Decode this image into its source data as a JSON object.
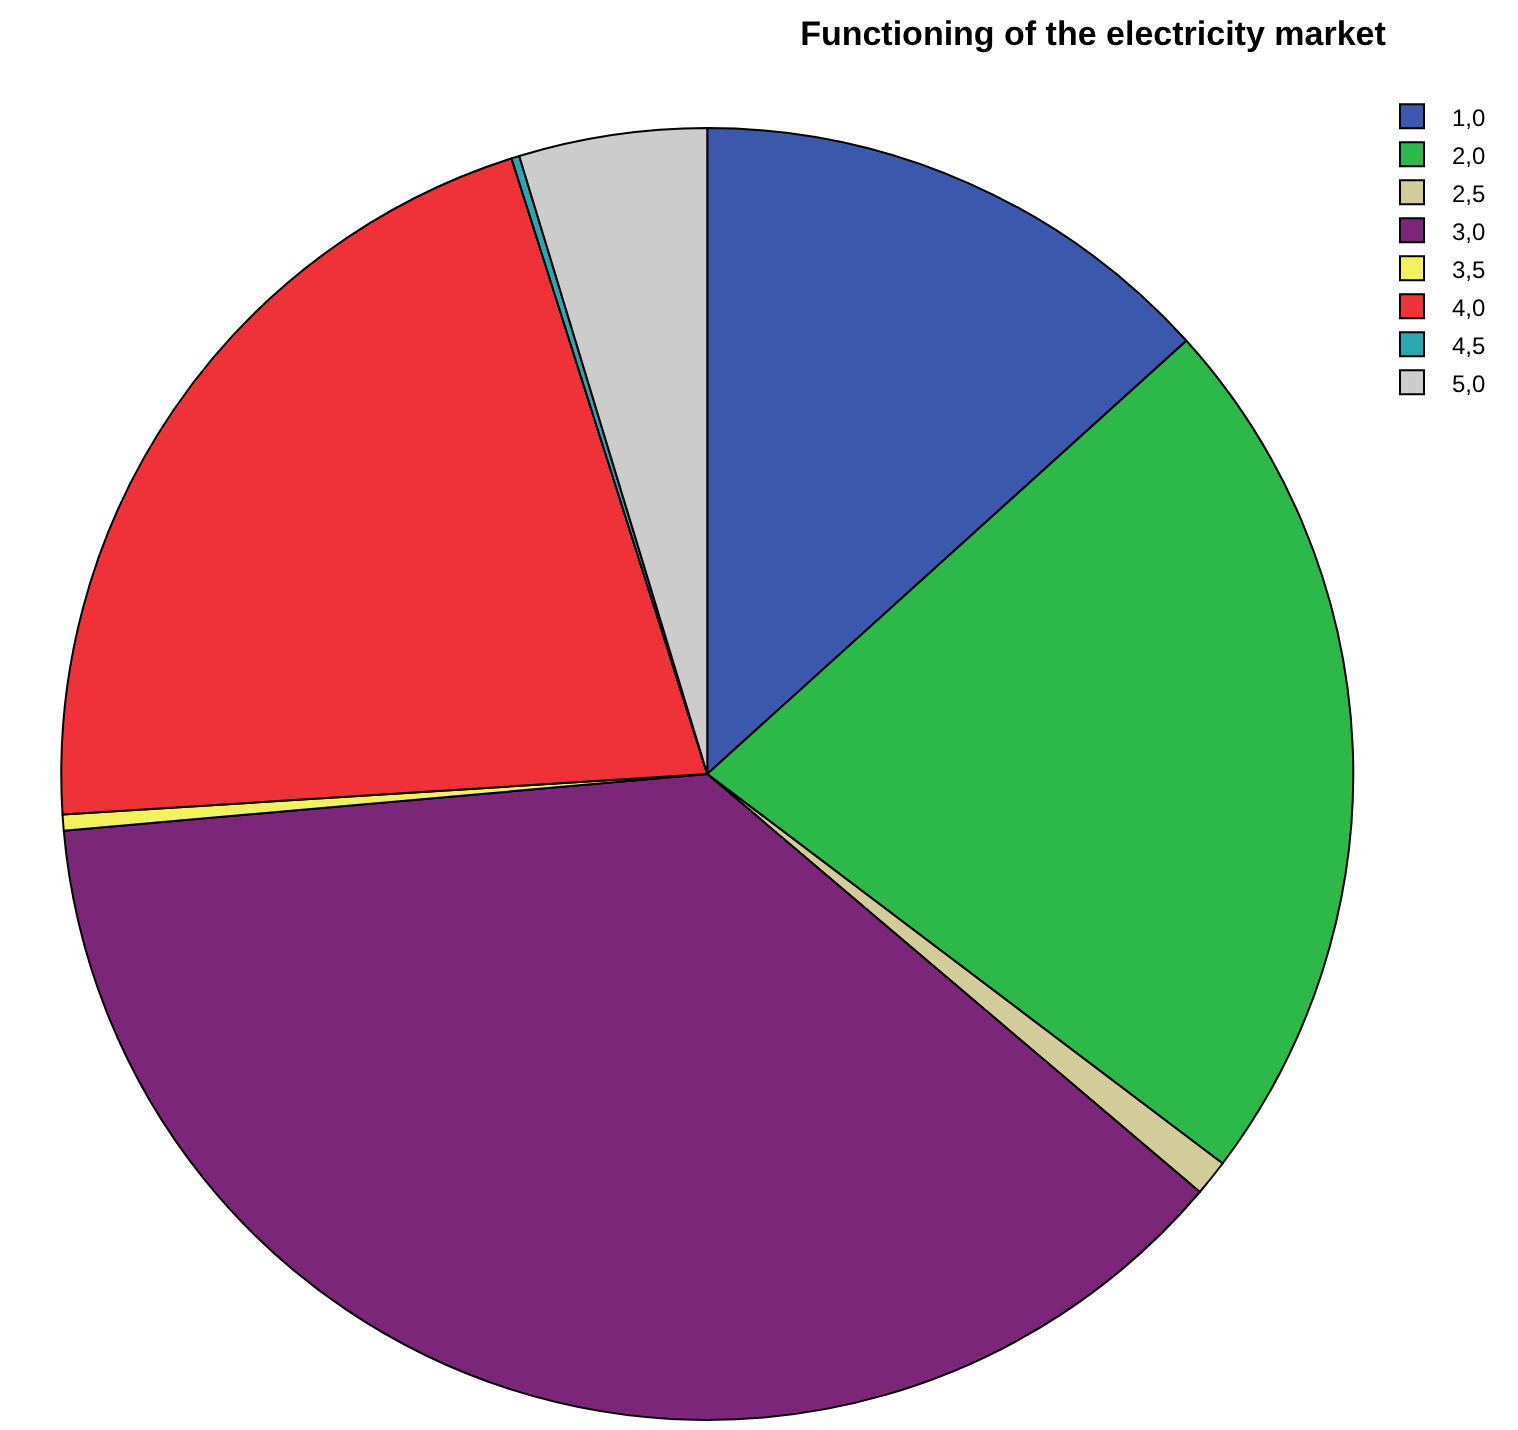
{
  "chart_data": {
    "type": "pie",
    "title": "Functioning of the electricity market",
    "categories": [
      "1,0",
      "2,0",
      "2,5",
      "3,0",
      "3,5",
      "4,0",
      "4,5",
      "5,0"
    ],
    "values": [
      13.3,
      22.0,
      0.9,
      37.4,
      0.4,
      21.1,
      0.2,
      4.7
    ],
    "colors": [
      "#3c58ac",
      "#2db84a",
      "#d2cc9a",
      "#7b2679",
      "#f2f25a",
      "#ee3238",
      "#2aa8b0",
      "#cccccc"
    ],
    "legend": "top right"
  }
}
